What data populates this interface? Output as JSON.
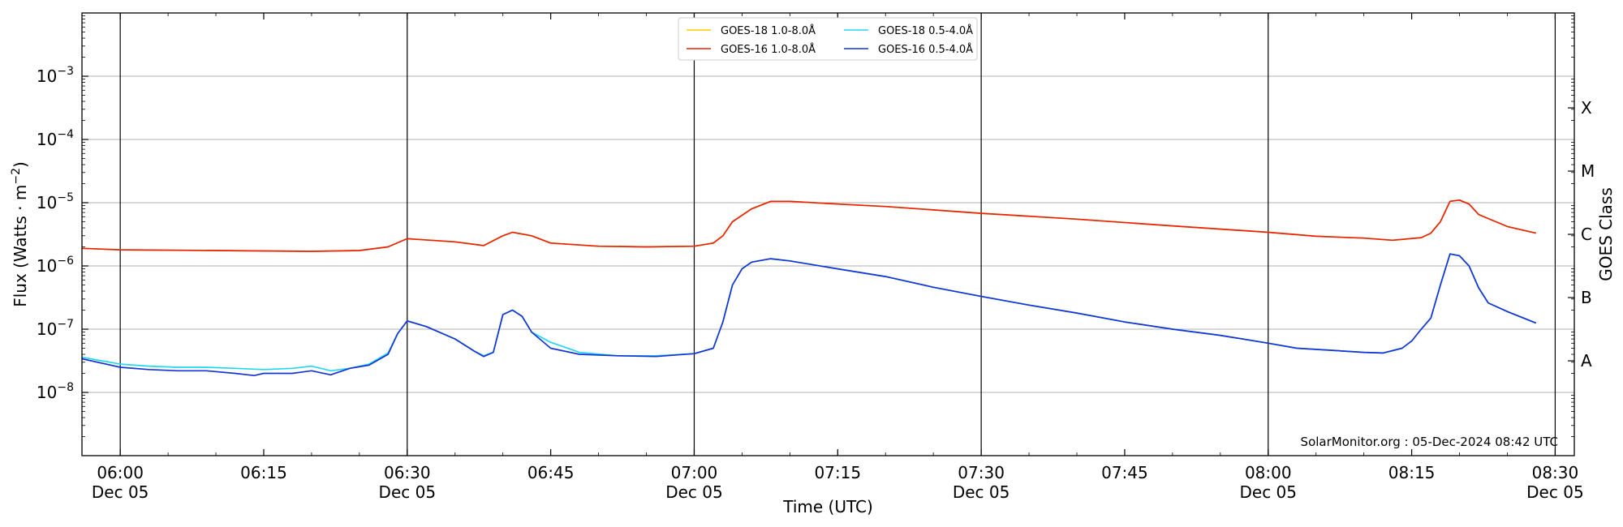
{
  "chart_data": {
    "type": "line",
    "xlabel": "Time (UTC)",
    "ylabel": "Flux (Watts · m",
    "ylabel_sup": "−2",
    "ylabel_close": ")",
    "right_label": "GOES Class",
    "credit": "SolarMonitor.org : 05-Dec-2024 08:42 UTC",
    "xlim": [
      "05:56",
      "08:32"
    ],
    "y_log": true,
    "ylim": [
      1e-09,
      0.01
    ],
    "grid": "horizontal",
    "legend_position": "top-center",
    "x_ticks": [
      {
        "time": "06:00",
        "label": "06:00",
        "sublabel": "Dec 05",
        "major": true
      },
      {
        "time": "06:15",
        "label": "06:15",
        "sublabel": "",
        "major": false
      },
      {
        "time": "06:30",
        "label": "06:30",
        "sublabel": "Dec 05",
        "major": true
      },
      {
        "time": "06:45",
        "label": "06:45",
        "sublabel": "",
        "major": false
      },
      {
        "time": "07:00",
        "label": "07:00",
        "sublabel": "Dec 05",
        "major": true
      },
      {
        "time": "07:15",
        "label": "07:15",
        "sublabel": "",
        "major": false
      },
      {
        "time": "07:30",
        "label": "07:30",
        "sublabel": "Dec 05",
        "major": true
      },
      {
        "time": "07:45",
        "label": "07:45",
        "sublabel": "",
        "major": false
      },
      {
        "time": "08:00",
        "label": "08:00",
        "sublabel": "Dec 05",
        "major": true
      },
      {
        "time": "08:15",
        "label": "08:15",
        "sublabel": "",
        "major": false
      },
      {
        "time": "08:30",
        "label": "08:30",
        "sublabel": "Dec 05",
        "major": true
      }
    ],
    "y_ticks": [
      {
        "value": 1e-08,
        "mantissa": "10",
        "exp": "−8"
      },
      {
        "value": 1e-07,
        "mantissa": "10",
        "exp": "−7"
      },
      {
        "value": 1e-06,
        "mantissa": "10",
        "exp": "−6"
      },
      {
        "value": 1e-05,
        "mantissa": "10",
        "exp": "−5"
      },
      {
        "value": 0.0001,
        "mantissa": "10",
        "exp": "−4"
      },
      {
        "value": 0.001,
        "mantissa": "10",
        "exp": "−3"
      }
    ],
    "goes_classes": [
      {
        "label": "A",
        "value": 3.16e-08
      },
      {
        "label": "B",
        "value": 3.16e-07
      },
      {
        "label": "C",
        "value": 3.16e-06
      },
      {
        "label": "M",
        "value": 3.16e-05
      },
      {
        "label": "X",
        "value": 0.000316
      }
    ],
    "series": [
      {
        "name": "GOES-18 1.0-8.0Å",
        "color": "#ffcc00",
        "x": [
          "05:56",
          "06:00",
          "06:10",
          "06:20",
          "06:25",
          "06:28",
          "06:30",
          "06:35",
          "06:38",
          "06:40",
          "06:41",
          "06:43",
          "06:45",
          "06:50",
          "06:55",
          "07:00",
          "07:02",
          "07:03",
          "07:04",
          "07:06",
          "07:08",
          "07:10",
          "07:15",
          "07:20",
          "07:25",
          "07:30",
          "07:40",
          "07:50",
          "08:00",
          "08:05",
          "08:10",
          "08:13",
          "08:16",
          "08:17",
          "08:18",
          "08:19",
          "08:20",
          "08:21",
          "08:22",
          "08:25",
          "08:28"
        ],
        "y": [
          1.9e-06,
          1.8e-06,
          1.75e-06,
          1.7e-06,
          1.75e-06,
          2e-06,
          2.7e-06,
          2.4e-06,
          2.1e-06,
          3e-06,
          3.4e-06,
          3e-06,
          2.3e-06,
          2.05e-06,
          2e-06,
          2.05e-06,
          2.3e-06,
          3e-06,
          5e-06,
          8e-06,
          1.05e-05,
          1.05e-05,
          9.5e-06,
          8.7e-06,
          7.7e-06,
          6.8e-06,
          5.5e-06,
          4.3e-06,
          3.4e-06,
          2.95e-06,
          2.75e-06,
          2.55e-06,
          2.8e-06,
          3.3e-06,
          5e-06,
          1.05e-05,
          1.1e-05,
          9.5e-06,
          6.5e-06,
          4.2e-06,
          3.3e-06
        ]
      },
      {
        "name": "GOES-16 1.0-8.0Å",
        "color": "#e8220a",
        "x": [
          "05:56",
          "06:00",
          "06:10",
          "06:20",
          "06:25",
          "06:28",
          "06:30",
          "06:35",
          "06:38",
          "06:40",
          "06:41",
          "06:43",
          "06:45",
          "06:50",
          "06:55",
          "07:00",
          "07:02",
          "07:03",
          "07:04",
          "07:06",
          "07:08",
          "07:10",
          "07:15",
          "07:20",
          "07:25",
          "07:30",
          "07:40",
          "07:50",
          "08:00",
          "08:05",
          "08:10",
          "08:13",
          "08:16",
          "08:17",
          "08:18",
          "08:19",
          "08:20",
          "08:21",
          "08:22",
          "08:25",
          "08:28"
        ],
        "y": [
          1.9e-06,
          1.8e-06,
          1.75e-06,
          1.7e-06,
          1.75e-06,
          2e-06,
          2.7e-06,
          2.4e-06,
          2.1e-06,
          3e-06,
          3.4e-06,
          3e-06,
          2.3e-06,
          2.05e-06,
          2e-06,
          2.05e-06,
          2.3e-06,
          3e-06,
          5e-06,
          8e-06,
          1.05e-05,
          1.05e-05,
          9.5e-06,
          8.7e-06,
          7.7e-06,
          6.8e-06,
          5.5e-06,
          4.3e-06,
          3.4e-06,
          2.95e-06,
          2.75e-06,
          2.55e-06,
          2.8e-06,
          3.3e-06,
          5e-06,
          1.05e-05,
          1.1e-05,
          9.5e-06,
          6.5e-06,
          4.2e-06,
          3.3e-06
        ]
      },
      {
        "name": "GOES-18 0.5-4.0Å",
        "color": "#22d8f0",
        "x": [
          "05:56",
          "06:00",
          "06:03",
          "06:06",
          "06:09",
          "06:12",
          "06:15",
          "06:18",
          "06:20",
          "06:22",
          "06:24",
          "06:26",
          "06:28",
          "06:29",
          "06:30",
          "06:32",
          "06:35",
          "06:37",
          "06:38",
          "06:39",
          "06:40",
          "06:41",
          "06:42",
          "06:43",
          "06:45",
          "06:48",
          "06:52",
          "06:56",
          "07:00",
          "07:02",
          "07:03",
          "07:04",
          "07:05",
          "07:06",
          "07:08",
          "07:10",
          "07:15",
          "07:20",
          "07:25",
          "07:30",
          "07:35",
          "07:40",
          "07:45",
          "07:50",
          "07:55",
          "08:00",
          "08:03",
          "08:06",
          "08:10",
          "08:12",
          "08:14",
          "08:15",
          "08:16",
          "08:17",
          "08:18",
          "08:19",
          "08:20",
          "08:21",
          "08:22",
          "08:23",
          "08:25",
          "08:28"
        ],
        "y": [
          3.6e-08,
          2.8e-08,
          2.6e-08,
          2.5e-08,
          2.5e-08,
          2.4e-08,
          2.3e-08,
          2.4e-08,
          2.6e-08,
          2.2e-08,
          2.4e-08,
          2.8e-08,
          4.2e-08,
          8.5e-08,
          1.35e-07,
          1.1e-07,
          7e-08,
          4.5e-08,
          3.8e-08,
          4.3e-08,
          1.7e-07,
          2e-07,
          1.6e-07,
          9e-08,
          6.2e-08,
          4.3e-08,
          3.8e-08,
          3.8e-08,
          4.1e-08,
          5e-08,
          1.3e-07,
          5e-07,
          9e-07,
          1.15e-06,
          1.3e-06,
          1.2e-06,
          9e-07,
          6.8e-07,
          4.6e-07,
          3.3e-07,
          2.4e-07,
          1.8e-07,
          1.3e-07,
          1e-07,
          8e-08,
          6e-08,
          5e-08,
          4.7e-08,
          4.3e-08,
          4.2e-08,
          5e-08,
          6.5e-08,
          1e-07,
          1.5e-07,
          5e-07,
          1.55e-06,
          1.45e-06,
          1e-06,
          4.5e-07,
          2.6e-07,
          1.9e-07,
          1.25e-07
        ]
      },
      {
        "name": "GOES-16 0.5-4.0Å",
        "color": "#1633d6",
        "x": [
          "05:56",
          "06:00",
          "06:03",
          "06:06",
          "06:09",
          "06:12",
          "06:14",
          "06:15",
          "06:18",
          "06:20",
          "06:22",
          "06:24",
          "06:26",
          "06:28",
          "06:29",
          "06:30",
          "06:32",
          "06:35",
          "06:37",
          "06:38",
          "06:39",
          "06:40",
          "06:41",
          "06:42",
          "06:43",
          "06:45",
          "06:48",
          "06:52",
          "06:56",
          "07:00",
          "07:02",
          "07:03",
          "07:04",
          "07:05",
          "07:06",
          "07:08",
          "07:10",
          "07:15",
          "07:20",
          "07:25",
          "07:30",
          "07:35",
          "07:40",
          "07:45",
          "07:50",
          "07:55",
          "08:00",
          "08:03",
          "08:06",
          "08:10",
          "08:12",
          "08:14",
          "08:15",
          "08:16",
          "08:17",
          "08:18",
          "08:19",
          "08:20",
          "08:21",
          "08:22",
          "08:23",
          "08:25",
          "08:28"
        ],
        "y": [
          3.4e-08,
          2.5e-08,
          2.3e-08,
          2.2e-08,
          2.2e-08,
          2e-08,
          1.85e-08,
          2e-08,
          2e-08,
          2.2e-08,
          1.9e-08,
          2.4e-08,
          2.7e-08,
          4e-08,
          8.5e-08,
          1.35e-07,
          1.1e-07,
          7e-08,
          4.5e-08,
          3.7e-08,
          4.3e-08,
          1.7e-07,
          2e-07,
          1.6e-07,
          9e-08,
          5e-08,
          4e-08,
          3.8e-08,
          3.7e-08,
          4.1e-08,
          5e-08,
          1.3e-07,
          5e-07,
          9e-07,
          1.15e-06,
          1.3e-06,
          1.2e-06,
          9e-07,
          6.8e-07,
          4.6e-07,
          3.3e-07,
          2.4e-07,
          1.8e-07,
          1.3e-07,
          1e-07,
          8e-08,
          6e-08,
          5e-08,
          4.7e-08,
          4.3e-08,
          4.2e-08,
          5e-08,
          6.5e-08,
          1e-07,
          1.5e-07,
          5e-07,
          1.55e-06,
          1.45e-06,
          1e-06,
          4.5e-07,
          2.6e-07,
          1.9e-07,
          1.25e-07
        ]
      }
    ]
  }
}
